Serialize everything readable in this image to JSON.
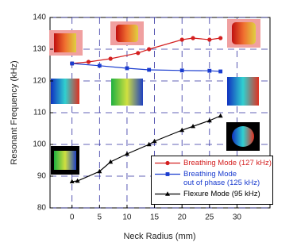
{
  "chart_data": {
    "type": "line",
    "xlabel": "Neck Radius (mm)",
    "ylabel": "Resonant Frequency (kHz)",
    "xlim": [
      -4,
      36
    ],
    "ylim": [
      80,
      140
    ],
    "xticks": [
      0,
      5,
      10,
      15,
      20,
      25,
      30
    ],
    "yticks": [
      80,
      90,
      100,
      110,
      120,
      130,
      140
    ],
    "grid": true,
    "series": [
      {
        "name": "Breathing Mode (127 kHz)",
        "color": "#d42020",
        "marker": "circle",
        "x": [
          0,
          3,
          7,
          12,
          14,
          20,
          22,
          25,
          27
        ],
        "values": [
          125.5,
          126,
          127,
          128.8,
          130,
          133,
          133.5,
          133,
          133.5
        ]
      },
      {
        "name": "Breathing Mode\nout of phase (125 kHz)",
        "color": "#1a3ccf",
        "marker": "square",
        "x": [
          0,
          5,
          10,
          14,
          20,
          25,
          27
        ],
        "values": [
          125.5,
          124.8,
          124,
          123.5,
          123.3,
          123.2,
          123
        ]
      },
      {
        "name": "Flexure Mode (95 kHz)",
        "color": "#000000",
        "marker": "triangle",
        "x": [
          0,
          1,
          5,
          7,
          10,
          14,
          15,
          20,
          22,
          25,
          27
        ],
        "values": [
          88.3,
          88.5,
          91.5,
          94.5,
          97,
          100,
          101,
          104.5,
          105.7,
          107.5,
          109
        ]
      }
    ]
  }
}
